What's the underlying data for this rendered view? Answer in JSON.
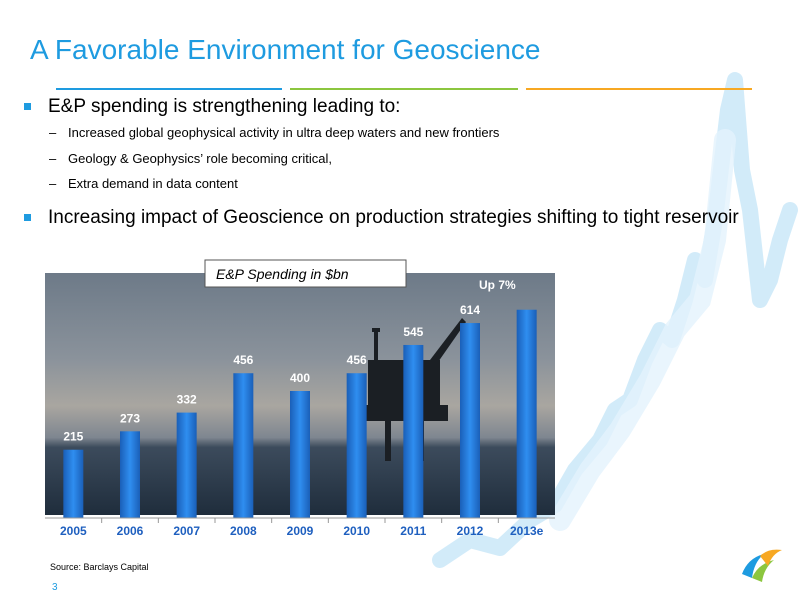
{
  "slide": {
    "title": "A Favorable Environment for Geoscience",
    "page_number": "3",
    "source": "Source: Barclays Capital",
    "accent_colors": [
      "#1e9be0",
      "#8cc63f",
      "#f7a823"
    ]
  },
  "bullets": [
    {
      "text": "E&P spending is strengthening leading to:",
      "subitems": [
        "Increased global geophysical activity in ultra deep waters and new frontiers",
        "Geology & Geophysics’ role becoming critical,",
        "Extra demand in data content"
      ]
    },
    {
      "text": "Increasing impact of Geoscience on production strategies shifting to tight reservoir",
      "subitems": []
    }
  ],
  "chart_data": {
    "type": "bar",
    "title": "E&P Spending in $bn",
    "categories": [
      "2005",
      "2006",
      "2007",
      "2008",
      "2009",
      "2010",
      "2011",
      "2012",
      "2013e"
    ],
    "values": [
      215,
      273,
      332,
      456,
      400,
      456,
      545,
      614,
      656
    ],
    "data_labels": [
      "215",
      "273",
      "332",
      "456",
      "400",
      "456",
      "545",
      "614",
      ""
    ],
    "annotation": "Up 7%",
    "ylim": [
      0,
      800
    ],
    "bar_color": "#1f6fd0",
    "grid": false
  }
}
